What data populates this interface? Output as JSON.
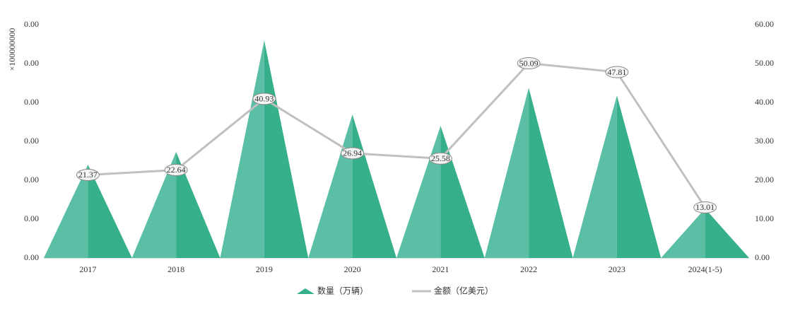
{
  "chart_data": {
    "type": "triangle-bar-line",
    "categories": [
      "2017",
      "2018",
      "2019",
      "2020",
      "2021",
      "2022",
      "2023",
      "2024(1-5)"
    ],
    "y_unit": "×100000000",
    "ylim": [
      0,
      60
    ],
    "yticks": [
      {
        "value": 0,
        "label": "0.00"
      },
      {
        "value": 10,
        "label": "0.00"
      },
      {
        "value": 20,
        "label": "0.00"
      },
      {
        "value": 30,
        "label": "0.00"
      },
      {
        "value": 40,
        "label": "0.00"
      },
      {
        "value": 50,
        "label": "0.00"
      },
      {
        "value": 60,
        "label": "0.00"
      }
    ],
    "y2lim": [
      0,
      60
    ],
    "y2ticks": [
      {
        "value": 0,
        "label": "0.00"
      },
      {
        "value": 10,
        "label": "10.00"
      },
      {
        "value": 20,
        "label": "20.00"
      },
      {
        "value": 30,
        "label": "30.00"
      },
      {
        "value": 40,
        "label": "40.00"
      },
      {
        "value": 50,
        "label": "50.00"
      },
      {
        "value": 60,
        "label": "60.00"
      }
    ],
    "series": [
      {
        "name": "数量（万辆）",
        "type": "triangle",
        "color": "#35b08a",
        "values": [
          24.0,
          27.3,
          56.0,
          36.9,
          34.0,
          43.8,
          41.8,
          12.7
        ]
      },
      {
        "name": "金额（亿美元）",
        "type": "line",
        "axis": "y2",
        "color": "#c0c0c0",
        "values": [
          21.37,
          22.64,
          40.93,
          26.94,
          25.58,
          50.09,
          47.81,
          13.01
        ]
      }
    ]
  }
}
